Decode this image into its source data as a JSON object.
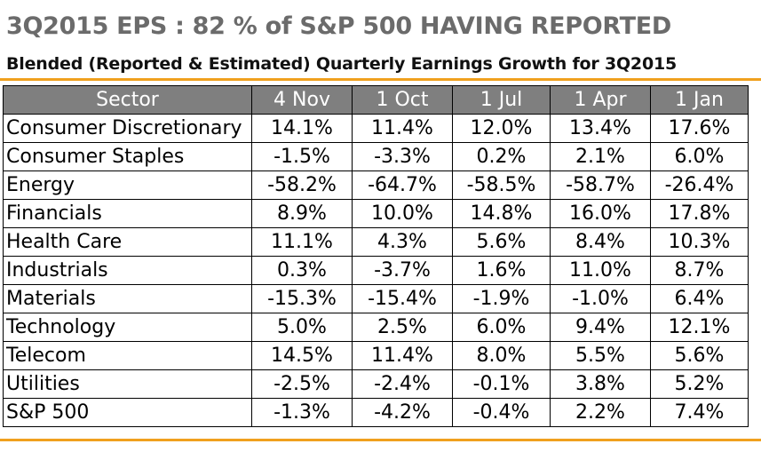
{
  "title": "3Q2015 EPS : 82 % of S&P 500 HAVING REPORTED",
  "subtitle": "Blended (Reported & Estimated) Quarterly Earnings Growth for 3Q2015",
  "colors": {
    "accent_rule": "#f0a01e",
    "header_bg": "#7f7f7f",
    "title_text": "#6b6b6b"
  },
  "chart_data": {
    "type": "table",
    "title": "3Q2015 EPS : 82 % of S&P 500 HAVING REPORTED",
    "subtitle": "Blended (Reported & Estimated) Quarterly Earnings Growth for 3Q2015",
    "columns": [
      "Sector",
      "4 Nov",
      "1 Oct",
      "1 Jul",
      "1 Apr",
      "1 Jan"
    ],
    "rows": [
      {
        "sector": "Consumer Discretionary",
        "values": [
          "14.1%",
          "11.4%",
          "12.0%",
          "13.4%",
          "17.6%"
        ]
      },
      {
        "sector": "Consumer Staples",
        "values": [
          "-1.5%",
          "-3.3%",
          "0.2%",
          "2.1%",
          "6.0%"
        ]
      },
      {
        "sector": "Energy",
        "values": [
          "-58.2%",
          "-64.7%",
          "-58.5%",
          "-58.7%",
          "-26.4%"
        ]
      },
      {
        "sector": "Financials",
        "values": [
          "8.9%",
          "10.0%",
          "14.8%",
          "16.0%",
          "17.8%"
        ]
      },
      {
        "sector": "Health Care",
        "values": [
          "11.1%",
          "4.3%",
          "5.6%",
          "8.4%",
          "10.3%"
        ]
      },
      {
        "sector": "Industrials",
        "values": [
          "0.3%",
          "-3.7%",
          "1.6%",
          "11.0%",
          "8.7%"
        ]
      },
      {
        "sector": "Materials",
        "values": [
          "-15.3%",
          "-15.4%",
          "-1.9%",
          "-1.0%",
          "6.4%"
        ]
      },
      {
        "sector": "Technology",
        "values": [
          "5.0%",
          "2.5%",
          "6.0%",
          "9.4%",
          "12.1%"
        ]
      },
      {
        "sector": "Telecom",
        "values": [
          "14.5%",
          "11.4%",
          "8.0%",
          "5.5%",
          "5.6%"
        ]
      },
      {
        "sector": "Utilities",
        "values": [
          "-2.5%",
          "-2.4%",
          "-0.1%",
          "3.8%",
          "5.2%"
        ]
      },
      {
        "sector": "S&P 500",
        "values": [
          "-1.3%",
          "-4.2%",
          "-0.4%",
          "2.2%",
          "7.4%"
        ]
      }
    ]
  }
}
